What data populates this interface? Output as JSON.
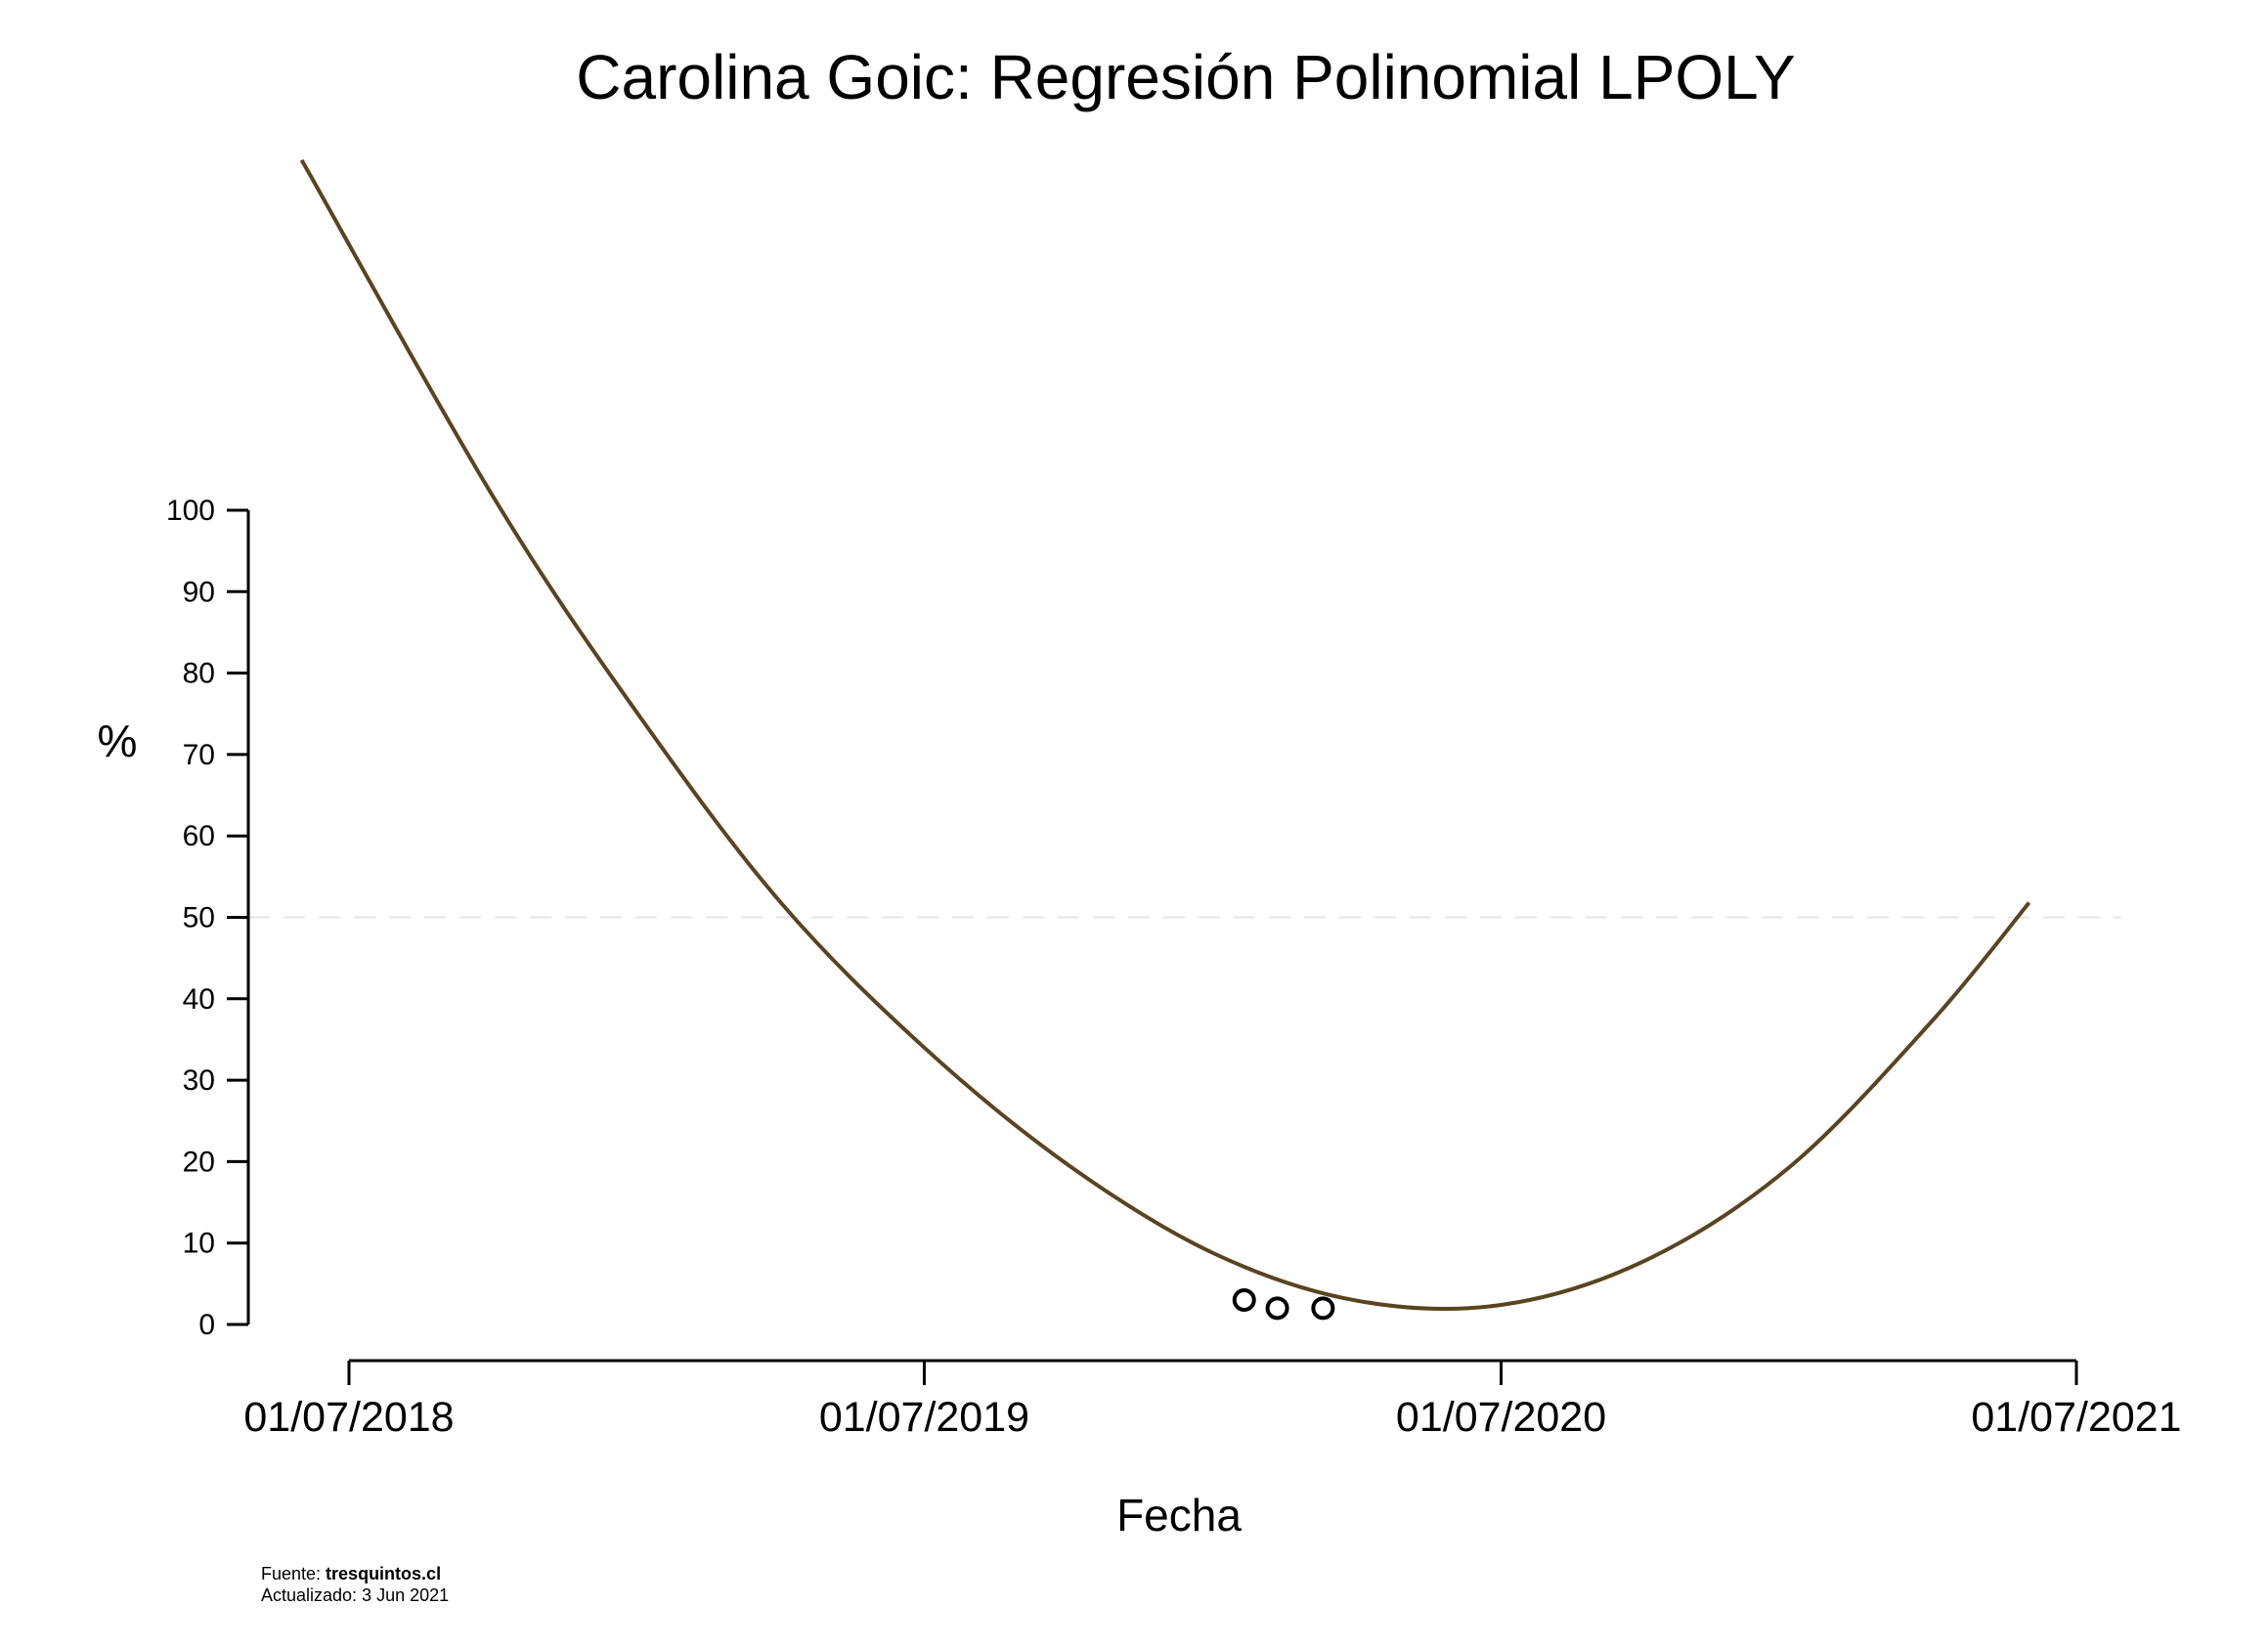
{
  "chart_data": {
    "type": "line",
    "title": "Carolina Goic: Regresión Polinomial LPOLY",
    "xlabel": "Fecha",
    "ylabel": "%",
    "x_tick_labels": [
      "01/07/2018",
      "01/07/2019",
      "01/07/2020",
      "01/07/2021"
    ],
    "x_ticks": [
      "2018-07-01",
      "2019-07-01",
      "2020-07-01",
      "2021-07-01"
    ],
    "y_ticks": [
      0,
      10,
      20,
      30,
      40,
      50,
      60,
      70,
      80,
      90,
      100
    ],
    "xlim": [
      "2018-07-01",
      "2021-07-01"
    ],
    "ylim": [
      0,
      100
    ],
    "reference_line": {
      "y": 50,
      "style": "dashed",
      "color": "#e6e6e6"
    },
    "grid": false,
    "legend": "none",
    "series": [
      {
        "type": "line",
        "color": "#5a4420",
        "x": [
          "2018-06-01",
          "2018-10-01",
          "2019-01-01",
          "2019-04-01",
          "2019-07-01",
          "2019-10-01",
          "2020-01-01",
          "2020-04-01",
          "2020-07-01",
          "2020-10-01",
          "2021-01-01",
          "2021-04-01",
          "2021-06-01"
        ],
        "y": [
          143,
          101.5,
          74.8,
          51.8,
          34.0,
          19.5,
          8.7,
          2.9,
          2.4,
          7.9,
          19.5,
          37.4,
          51.8
        ]
      },
      {
        "type": "scatter",
        "marker": "open-circle",
        "color": "#000000",
        "x": [
          "2020-01-20",
          "2020-02-10",
          "2020-03-10"
        ],
        "y": [
          3,
          2,
          2
        ]
      }
    ]
  },
  "footer": {
    "source_label": "Fuente: ",
    "source_name": "tresquintos.cl",
    "updated": "Actualizado: 3 Jun 2021"
  }
}
